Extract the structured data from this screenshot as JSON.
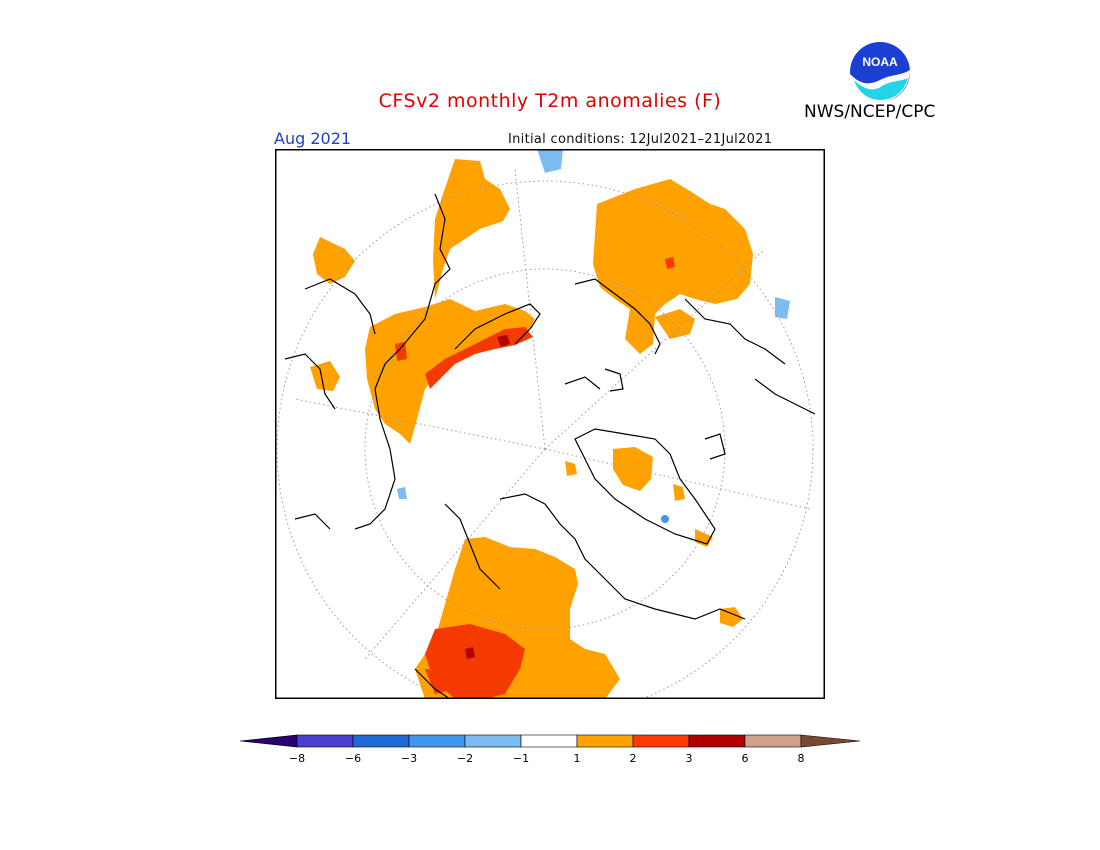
{
  "header": {
    "title": "CFSv2 monthly T2m anomalies (F)",
    "period": "Aug 2021",
    "initial_conditions": "Initial conditions: 12Jul2021–21Jul2021",
    "agency": "NWS/NCEP/CPC",
    "logo_text": "NOAA"
  },
  "legend": {
    "ticks": [
      "−8",
      "−6",
      "−3",
      "−2",
      "−1",
      "1",
      "2",
      "3",
      "6",
      "8"
    ],
    "colors": {
      "below_minus8": "#2a006e",
      "minus8_minus6": "#4a3fd0",
      "minus6_minus3": "#1f6ad8",
      "minus3_minus2": "#3f96ee",
      "minus2_minus1": "#7cbcf0",
      "minus1_plus1": "#ffffff",
      "plus1_plus2": "#ffa200",
      "plus2_plus3": "#ff3a00",
      "plus3_plus6": "#b00000",
      "plus6_plus8": "#cfa08c",
      "above_plus8": "#7a4a30"
    }
  },
  "map": {
    "projection": "north polar stereographic",
    "colors": {
      "warm1": "#ffa200",
      "warm2": "#f43a00",
      "warm3": "#b30000",
      "cool1": "#7cbcf0",
      "cool2": "#3f96ee",
      "coast": "#000000",
      "grid": "#888888"
    }
  }
}
